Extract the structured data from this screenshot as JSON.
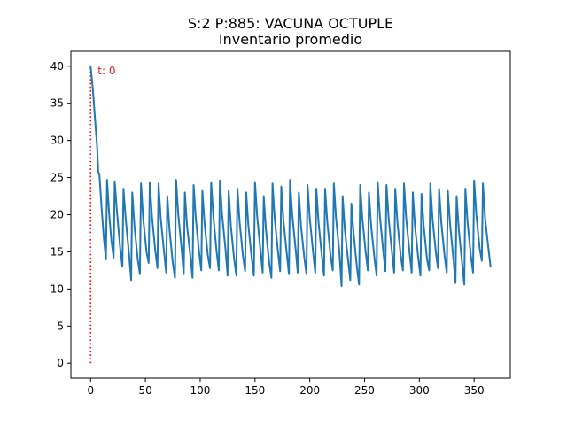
{
  "chart_data": {
    "type": "line",
    "title": "S:2 P:885: VACUNA OCTUPLE",
    "subtitle": "Inventario promedio",
    "xlabel": "",
    "ylabel": "",
    "xlim": [
      -18,
      383
    ],
    "ylim": [
      -2,
      42
    ],
    "x_ticks": [
      0,
      50,
      100,
      150,
      200,
      250,
      300,
      350
    ],
    "y_ticks": [
      0,
      5,
      10,
      15,
      20,
      25,
      30,
      35,
      40
    ],
    "grid": false,
    "series": [
      {
        "color": "#1f77b4",
        "x": [
          0,
          2,
          4,
          6,
          7,
          8,
          10,
          12,
          14,
          15,
          17,
          19,
          21,
          22,
          24,
          27,
          29,
          30,
          32,
          35,
          37,
          38,
          40,
          43,
          45,
          46,
          48,
          51,
          53,
          54,
          56,
          59,
          61,
          62,
          64,
          67,
          69,
          70,
          72,
          75,
          77,
          78,
          80,
          83,
          85,
          86,
          88,
          91,
          93,
          94,
          96,
          99,
          101,
          102,
          104,
          107,
          109,
          110,
          112,
          115,
          117,
          118,
          120,
          123,
          125,
          126,
          128,
          131,
          133,
          134,
          136,
          139,
          141,
          142,
          144,
          147,
          149,
          150,
          152,
          155,
          157,
          158,
          160,
          163,
          165,
          166,
          168,
          171,
          173,
          174,
          176,
          179,
          181,
          182,
          184,
          187,
          189,
          190,
          192,
          195,
          197,
          198,
          200,
          203,
          205,
          206,
          208,
          211,
          213,
          214,
          216,
          219,
          221,
          222,
          224,
          227,
          229,
          230,
          232,
          235,
          237,
          238,
          240,
          243,
          245,
          246,
          248,
          251,
          253,
          254,
          256,
          259,
          261,
          262,
          264,
          267,
          269,
          270,
          272,
          275,
          277,
          278,
          280,
          283,
          285,
          286,
          288,
          291,
          293,
          294,
          296,
          299,
          301,
          302,
          304,
          307,
          309,
          310,
          312,
          315,
          317,
          318,
          320,
          323,
          325,
          326,
          328,
          331,
          333,
          334,
          336,
          339,
          341,
          342,
          344,
          347,
          349,
          350,
          352,
          355,
          357,
          358,
          360,
          363,
          365
        ],
        "y": [
          40,
          37,
          33,
          29,
          25.7,
          25.5,
          21,
          17,
          14,
          24.7,
          20,
          16.5,
          14.2,
          24.5,
          20.5,
          15.5,
          13,
          23.5,
          19.5,
          14.8,
          11.2,
          23,
          18.5,
          14,
          12,
          24.2,
          19.5,
          15,
          13.5,
          24.4,
          19.8,
          15.2,
          12.8,
          24.2,
          19.5,
          15,
          12.2,
          22.5,
          18,
          13.5,
          11.5,
          24.7,
          20,
          15.5,
          12,
          23,
          18.5,
          14.5,
          11.5,
          24,
          19.5,
          15,
          12.5,
          23.2,
          18.8,
          14.5,
          12.8,
          24.4,
          19.8,
          15,
          12.5,
          24.6,
          20,
          15.5,
          11.8,
          23.2,
          18.5,
          14,
          11.8,
          23.5,
          19,
          14.5,
          12.4,
          23,
          18.5,
          14.2,
          11.8,
          24.4,
          19.8,
          15.2,
          12.2,
          22.5,
          18,
          13.5,
          11.5,
          24.2,
          19.5,
          15,
          12.4,
          23.8,
          19.2,
          14.8,
          12,
          24.7,
          20,
          15.5,
          12.2,
          23,
          18.5,
          14.2,
          12,
          24,
          19.5,
          15,
          12.2,
          23.5,
          19,
          14.5,
          11.8,
          23.5,
          19,
          14.5,
          12.5,
          24.2,
          19.5,
          15,
          10.4,
          22.5,
          18,
          13.8,
          11.2,
          21.5,
          17.5,
          13,
          10.6,
          24,
          19.5,
          15,
          12.5,
          23,
          18.5,
          14.2,
          11.8,
          24.4,
          19.8,
          15.2,
          12.4,
          24,
          19.5,
          15,
          12.2,
          23.5,
          19,
          14.5,
          12.5,
          24.2,
          19.5,
          15,
          12.2,
          23,
          18.5,
          14.2,
          11.8,
          22.8,
          18.5,
          14,
          12.5,
          24.2,
          19.5,
          15,
          12.8,
          23.5,
          19,
          14.5,
          12.2,
          23.2,
          18.8,
          14.2,
          10.8,
          22.5,
          18,
          13.5,
          10.6,
          23.5,
          19,
          14.5,
          12.2,
          24.6,
          20,
          15.5,
          13.8,
          24.2,
          19.5,
          15.5,
          13
        ]
      }
    ],
    "annotations": [
      {
        "text": "t: 0",
        "x": 0,
        "y": 40,
        "color": "#d62728"
      }
    ],
    "marker_line": {
      "x": 0,
      "y_from": 0,
      "y_to": 40,
      "color": "#ff0000",
      "style": "dotted"
    }
  }
}
